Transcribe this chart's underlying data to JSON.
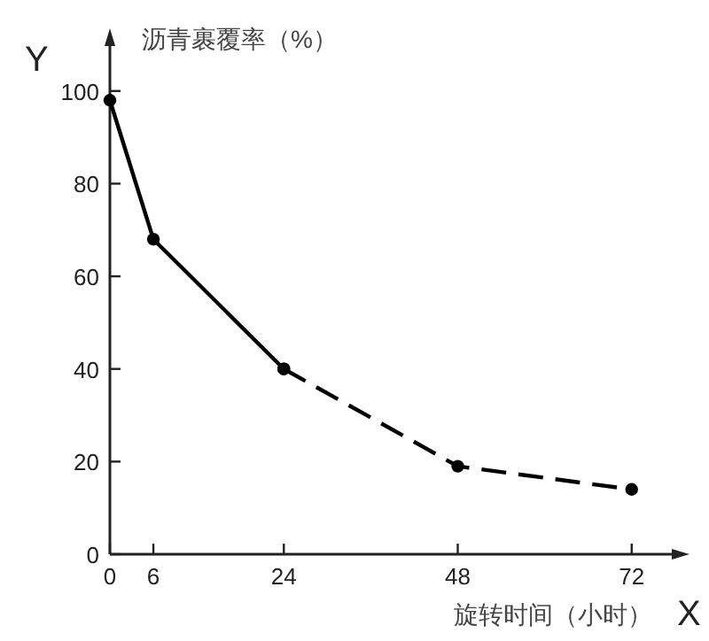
{
  "chart_data": {
    "type": "line",
    "xlabel": "旋转时间（小时）",
    "ylabel": "沥青裹覆率（%）",
    "annotations": [
      "Y",
      "X"
    ],
    "xlim": [
      0,
      79
    ],
    "xticks": [
      0,
      6,
      24,
      48,
      72
    ],
    "ylim": [
      0,
      112
    ],
    "yticks": [
      0,
      20,
      40,
      60,
      80,
      100
    ],
    "grid": false,
    "marker": "circle",
    "series": [
      {
        "color": "#000000",
        "line_style": "solid",
        "x": [
          0,
          6,
          24
        ],
        "values": [
          98,
          68,
          40
        ]
      },
      {
        "color": "#000000",
        "line_style": "dashed",
        "x": [
          24,
          48,
          72
        ],
        "values": [
          40,
          19,
          14
        ]
      }
    ]
  }
}
